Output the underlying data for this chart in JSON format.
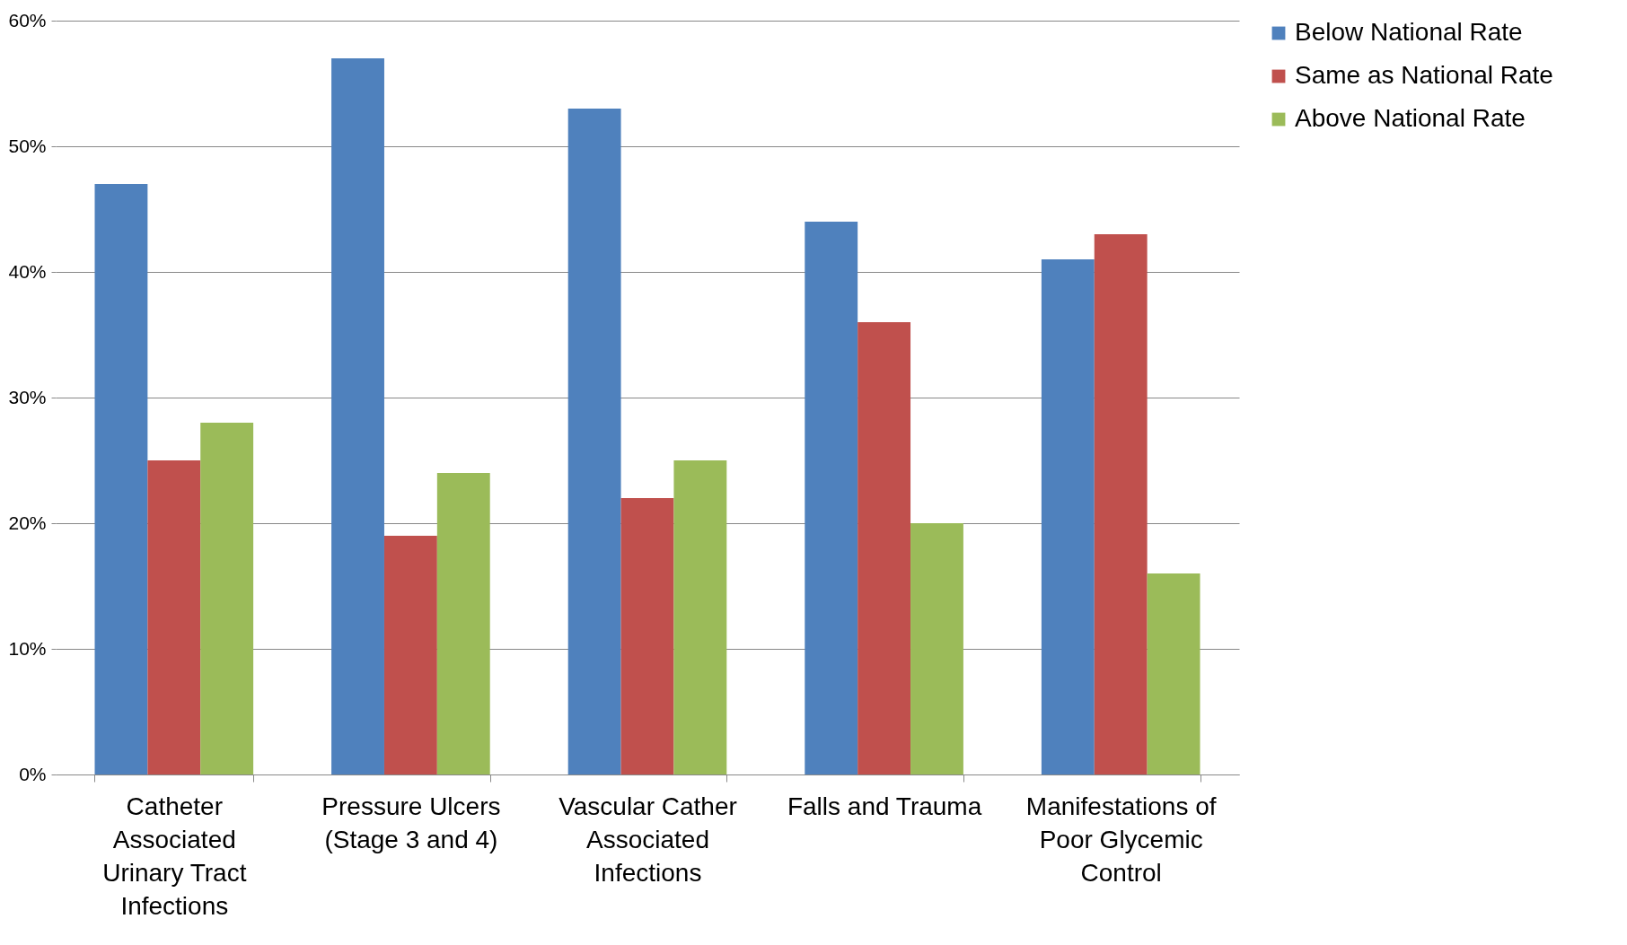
{
  "chart_data": {
    "type": "bar",
    "categories": [
      "Catheter Associated Urinary Tract Infections",
      "Pressure Ulcers (Stage 3 and 4)",
      "Vascular Cather Associated Infections",
      "Falls and Trauma",
      "Manifestations of Poor Glycemic Control"
    ],
    "series": [
      {
        "name": "Below National Rate",
        "color": "#4f81bd",
        "values": [
          47,
          57,
          53,
          44,
          41
        ]
      },
      {
        "name": "Same as National Rate",
        "color": "#c0504d",
        "values": [
          25,
          19,
          22,
          36,
          43
        ]
      },
      {
        "name": "Above National Rate",
        "color": "#9bbb59",
        "values": [
          28,
          24,
          25,
          20,
          16
        ]
      }
    ],
    "ylim": [
      0,
      60
    ],
    "yticks": [
      {
        "value": 0,
        "label": "0%"
      },
      {
        "value": 10,
        "label": "10%"
      },
      {
        "value": 20,
        "label": "20%"
      },
      {
        "value": 30,
        "label": "30%"
      },
      {
        "value": 40,
        "label": "40%"
      },
      {
        "value": 50,
        "label": "50%"
      },
      {
        "value": 60,
        "label": "60%"
      }
    ],
    "grid": "y",
    "legend": "right"
  }
}
